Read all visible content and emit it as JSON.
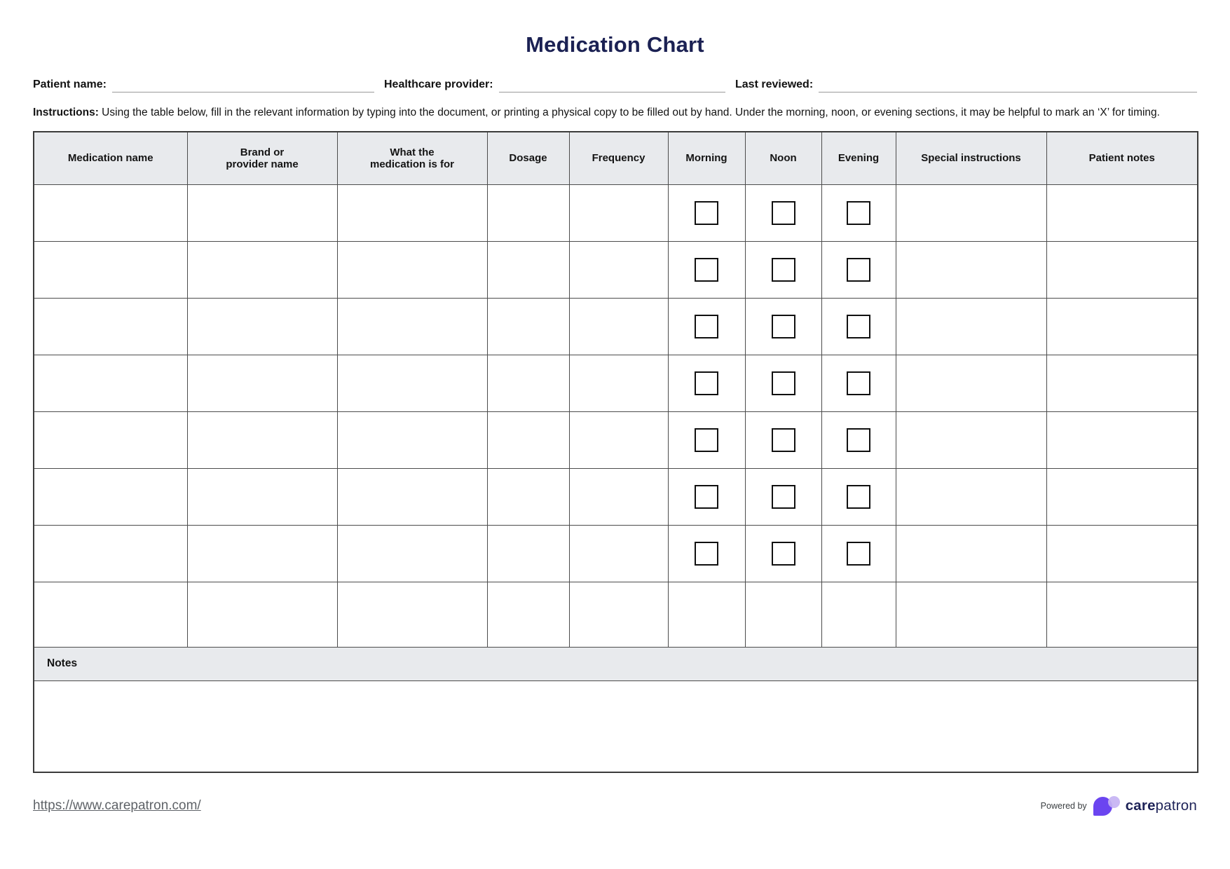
{
  "title": "Medication Chart",
  "fields": {
    "patient_name_label": "Patient name:",
    "healthcare_provider_label": "Healthcare provider:",
    "last_reviewed_label": "Last reviewed:",
    "patient_name_value": "",
    "healthcare_provider_value": "",
    "last_reviewed_value": ""
  },
  "instructions": {
    "lead": "Instructions:",
    "text": " Using the table below, fill in the relevant information by typing into the document, or printing a physical copy to be filled out by hand. Under the morning, noon, or evening sections, it may be helpful to mark an ‘X’ for timing."
  },
  "table": {
    "headers": [
      "Medication name",
      "Brand or\nprovider name",
      "What the\nmedication is for",
      "Dosage",
      "Frequency",
      "Morning",
      "Noon",
      "Evening",
      "Special instructions",
      "Patient notes"
    ],
    "column_keys": [
      "medication-name",
      "brand-or-provider-name",
      "what-the-medication-is-for",
      "dosage",
      "frequency",
      "morning",
      "noon",
      "evening",
      "special-instructions",
      "patient-notes"
    ],
    "checkbox_column_indexes": [
      5,
      6,
      7
    ],
    "rows": [
      {
        "checkboxes": true,
        "cells": [
          "",
          "",
          "",
          "",
          "",
          "",
          "",
          "",
          "",
          ""
        ]
      },
      {
        "checkboxes": true,
        "cells": [
          "",
          "",
          "",
          "",
          "",
          "",
          "",
          "",
          "",
          ""
        ]
      },
      {
        "checkboxes": true,
        "cells": [
          "",
          "",
          "",
          "",
          "",
          "",
          "",
          "",
          "",
          ""
        ]
      },
      {
        "checkboxes": true,
        "cells": [
          "",
          "",
          "",
          "",
          "",
          "",
          "",
          "",
          "",
          ""
        ]
      },
      {
        "checkboxes": true,
        "cells": [
          "",
          "",
          "",
          "",
          "",
          "",
          "",
          "",
          "",
          ""
        ]
      },
      {
        "checkboxes": true,
        "cells": [
          "",
          "",
          "",
          "",
          "",
          "",
          "",
          "",
          "",
          ""
        ]
      },
      {
        "checkboxes": true,
        "cells": [
          "",
          "",
          "",
          "",
          "",
          "",
          "",
          "",
          "",
          ""
        ]
      },
      {
        "checkboxes": false,
        "cells": [
          "",
          "",
          "",
          "",
          "",
          "",
          "",
          "",
          "",
          ""
        ]
      }
    ],
    "notes_label": "Notes",
    "notes_value": ""
  },
  "footer": {
    "link": "https://www.carepatron.com/",
    "powered_by": "Powered by",
    "brand_bold": "care",
    "brand_regular": "patron"
  },
  "colors": {
    "title_navy": "#1b2153",
    "header_bg": "#e8eaed",
    "table_border": "#4c4c4c",
    "brand_purple": "#6b45f0",
    "brand_lavender": "#c5b3f3",
    "link_gray": "#5f6368"
  }
}
